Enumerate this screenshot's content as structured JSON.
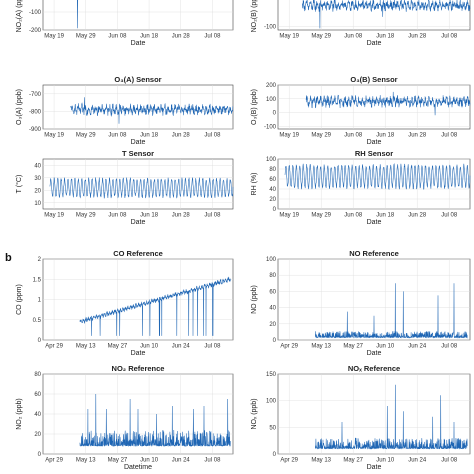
{
  "figure": {
    "panel_b_label": "b"
  },
  "chart_data": [
    {
      "id": "no2a",
      "type": "line",
      "title": "",
      "xlabel": "Date",
      "ylabel": "NO₂(A) (ppb)",
      "xticks": [
        "May 19",
        "May 29",
        "Jun 08",
        "Jun 18",
        "Jun 28",
        "Jul 08"
      ],
      "yticks": [
        "-100",
        "-200"
      ],
      "ylim": [
        -200,
        0
      ],
      "grid": true,
      "series": [
        {
          "start_day": 0,
          "end_day": 55,
          "mean": -5,
          "noise": 10,
          "cycle": 6,
          "spikes": [
            [
              10,
              -190
            ]
          ]
        }
      ]
    },
    {
      "id": "no2b",
      "type": "line",
      "title": "",
      "xlabel": "Date",
      "ylabel": "NO₂(B) (ppb)",
      "xticks": [
        "May 19",
        "May 29",
        "Jun 08",
        "Jun 18",
        "Jun 28",
        "Jul 08"
      ],
      "yticks": [
        "-100"
      ],
      "ylim": [
        -110,
        0
      ],
      "grid": true,
      "series": [
        {
          "start_day": 7,
          "end_day": 55,
          "mean": -35,
          "noise": 12,
          "cycle": 8,
          "spikes": [
            [
              12,
              -105
            ],
            [
              30,
              -70
            ]
          ]
        }
      ]
    },
    {
      "id": "o3a",
      "type": "line",
      "title": "O₃(A) Sensor",
      "xlabel": "Date",
      "ylabel": "O₃(A) (ppb)",
      "xticks": [
        "May 19",
        "May 29",
        "Jun 08",
        "Jun 18",
        "Jun 28",
        "Jul 08"
      ],
      "yticks": [
        "-700",
        "-800",
        "-900"
      ],
      "ylim": [
        -900,
        -650
      ],
      "grid": true,
      "series": [
        {
          "start_day": 8,
          "end_day": 55,
          "mean": -790,
          "noise": 22,
          "cycle": 15,
          "spikes": [
            [
              22,
              -870
            ],
            [
              12,
              -720
            ]
          ]
        }
      ]
    },
    {
      "id": "o3b",
      "type": "line",
      "title": "O₃(B) Sensor",
      "xlabel": "Date",
      "ylabel": "O₃(B) (ppb)",
      "xticks": [
        "May 19",
        "May 29",
        "Jun 08",
        "Jun 18",
        "Jun 28",
        "Jul 08"
      ],
      "yticks": [
        "200",
        "100",
        "0",
        "-100"
      ],
      "ylim": [
        -120,
        200
      ],
      "grid": true,
      "series": [
        {
          "start_day": 8,
          "end_day": 55,
          "mean": 80,
          "noise": 30,
          "cycle": 18,
          "spikes": [
            [
              33,
              150
            ],
            [
              45,
              -20
            ]
          ]
        }
      ]
    },
    {
      "id": "t",
      "type": "line",
      "title": "T Sensor",
      "xlabel": "Date",
      "ylabel": "T (°C)",
      "xticks": [
        "May 19",
        "May 29",
        "Jun 08",
        "Jun 18",
        "Jun 28",
        "Jul 08"
      ],
      "yticks": [
        "40",
        "30",
        "20",
        "10"
      ],
      "ylim": [
        5,
        45
      ],
      "grid": true,
      "series": [
        {
          "start_day": 2,
          "end_day": 55,
          "mean": 22,
          "noise": 1.5,
          "cycle": 7,
          "spikes": []
        }
      ]
    },
    {
      "id": "rh",
      "type": "line",
      "title": "RH Sensor",
      "xlabel": "Date",
      "ylabel": "RH (%)",
      "xticks": [
        "May 19",
        "May 29",
        "Jun 08",
        "Jun 18",
        "Jun 28",
        "Jul 08"
      ],
      "yticks": [
        "100",
        "80",
        "60",
        "40",
        "20",
        "0"
      ],
      "ylim": [
        0,
        100
      ],
      "grid": true,
      "series": [
        {
          "start_day": 2,
          "end_day": 55,
          "mean": 65,
          "noise": 4,
          "cycle": 22,
          "spikes": []
        }
      ]
    },
    {
      "id": "co_ref",
      "type": "line",
      "title": "CO Reference",
      "xlabel": "Date",
      "ylabel": "CO (ppm)",
      "xticks": [
        "Apr 29",
        "May 13",
        "May 27",
        "Jun 10",
        "Jun 24",
        "Jul 08"
      ],
      "yticks": [
        "2",
        "1.5",
        "1",
        "0.5",
        "0"
      ],
      "ylim": [
        0,
        2
      ],
      "grid": true,
      "series": [
        {
          "start_day": 14,
          "end_day": 71,
          "start_value": 0.45,
          "end_value": 1.5,
          "noise": 0.04,
          "cycle": 0.03,
          "dropouts": true,
          "spikes": []
        }
      ]
    },
    {
      "id": "no_ref",
      "type": "line",
      "title": "NO Reference",
      "xlabel": "Date",
      "ylabel": "NO (ppb)",
      "xticks": [
        "Apr 29",
        "May 13",
        "May 27",
        "Jun 10",
        "Jun 24",
        "Jul 08"
      ],
      "yticks": [
        "100",
        "80",
        "60",
        "40",
        "20",
        "0"
      ],
      "ylim": [
        0,
        100
      ],
      "grid": true,
      "series": [
        {
          "start_day": 14,
          "end_day": 71,
          "mean": 3,
          "noise": 2,
          "cycle": 0,
          "spiky": true,
          "spikes": [
            [
              44,
              70
            ],
            [
              47,
              60
            ],
            [
              60,
              55
            ],
            [
              66,
              70
            ],
            [
              26,
              35
            ],
            [
              36,
              30
            ]
          ]
        }
      ]
    },
    {
      "id": "no2_ref",
      "type": "line",
      "title": "NO₂ Reference",
      "xlabel": "Datetime",
      "ylabel": "NO₂ (ppb)",
      "xticks": [
        "Apr 29",
        "May 13",
        "May 27",
        "Jun 10",
        "Jun 24",
        "Jul 08"
      ],
      "yticks": [
        "80",
        "60",
        "40",
        "20",
        "0"
      ],
      "ylim": [
        0,
        80
      ],
      "grid": true,
      "series": [
        {
          "start_day": 14,
          "end_day": 71,
          "mean": 8,
          "noise": 4,
          "cycle": 0,
          "spiky": true,
          "spikes": [
            [
              17,
              45
            ],
            [
              20,
              60
            ],
            [
              24,
              45
            ],
            [
              33,
              55
            ],
            [
              36,
              45
            ],
            [
              43,
              40
            ],
            [
              49,
              48
            ],
            [
              57,
              45
            ],
            [
              61,
              48
            ],
            [
              70,
              55
            ]
          ]
        }
      ]
    },
    {
      "id": "nox_ref",
      "type": "line",
      "title": "NOₓ Reference",
      "xlabel": "Date",
      "ylabel": "NOₓ (ppb)",
      "xticks": [
        "Apr 29",
        "May 13",
        "May 27",
        "Jun 10",
        "Jun 24",
        "Jul 08"
      ],
      "yticks": [
        "150",
        "100",
        "50",
        "0"
      ],
      "ylim": [
        0,
        150
      ],
      "grid": true,
      "series": [
        {
          "start_day": 14,
          "end_day": 71,
          "mean": 10,
          "noise": 5,
          "cycle": 0,
          "spiky": true,
          "spikes": [
            [
              24,
              60
            ],
            [
              41,
              90
            ],
            [
              44,
              130
            ],
            [
              47,
              80
            ],
            [
              58,
              70
            ],
            [
              61,
              110
            ],
            [
              66,
              60
            ]
          ]
        }
      ]
    }
  ]
}
